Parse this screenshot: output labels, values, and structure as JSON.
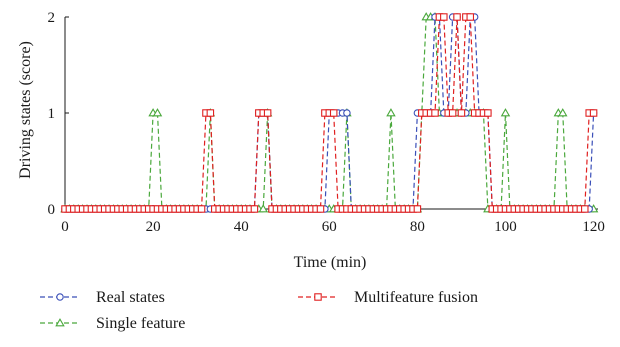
{
  "chart_data": {
    "type": "line",
    "xlabel": "Time (min)",
    "ylabel": "Driving states (score)",
    "xlim": [
      0,
      121
    ],
    "ylim": [
      0,
      2
    ],
    "xticks": [
      0,
      20,
      40,
      60,
      80,
      100,
      120
    ],
    "yticks": [
      0,
      1,
      2
    ],
    "grid": false,
    "legend_position": "bottom",
    "series": [
      {
        "name": "Real states",
        "color": "#3a4fb8",
        "marker": "circle",
        "x": [
          0,
          1,
          2,
          3,
          4,
          5,
          6,
          7,
          8,
          9,
          10,
          11,
          12,
          13,
          14,
          15,
          16,
          17,
          18,
          19,
          20,
          21,
          22,
          23,
          24,
          25,
          26,
          27,
          28,
          29,
          30,
          31,
          32,
          33,
          34,
          35,
          36,
          37,
          38,
          39,
          40,
          41,
          42,
          43,
          44,
          45,
          46,
          47,
          48,
          49,
          50,
          51,
          52,
          53,
          54,
          55,
          56,
          57,
          58,
          59,
          60,
          61,
          62,
          63,
          64,
          65,
          66,
          67,
          68,
          69,
          70,
          71,
          72,
          73,
          74,
          75,
          76,
          77,
          78,
          79,
          80,
          81,
          82,
          83,
          84,
          85,
          86,
          87,
          88,
          89,
          90,
          91,
          92,
          93,
          94,
          95,
          96,
          97,
          98,
          99,
          100,
          101,
          102,
          103,
          104,
          105,
          106,
          107,
          108,
          109,
          110,
          111,
          112,
          113,
          114,
          115,
          116,
          117,
          118,
          119,
          120
        ],
        "values": [
          0,
          0,
          0,
          0,
          0,
          0,
          0,
          0,
          0,
          0,
          0,
          0,
          0,
          0,
          0,
          0,
          0,
          0,
          0,
          0,
          0,
          0,
          0,
          0,
          0,
          0,
          0,
          0,
          0,
          0,
          0,
          0,
          0,
          0,
          0,
          0,
          0,
          0,
          0,
          0,
          0,
          0,
          0,
          0,
          1,
          1,
          1,
          0,
          0,
          0,
          0,
          0,
          0,
          0,
          0,
          0,
          0,
          0,
          0,
          0,
          1,
          1,
          1,
          1,
          1,
          0,
          0,
          0,
          0,
          0,
          0,
          0,
          0,
          0,
          0,
          0,
          0,
          0,
          0,
          0,
          1,
          1,
          1,
          1,
          2,
          2,
          1,
          1,
          2,
          2,
          1,
          1,
          2,
          2,
          1,
          1,
          1,
          0,
          0,
          0,
          0,
          0,
          0,
          0,
          0,
          0,
          0,
          0,
          0,
          0,
          0,
          0,
          0,
          0,
          0,
          0,
          0,
          0,
          0,
          0,
          1
        ]
      },
      {
        "name": "Single feature",
        "color": "#4aa83c",
        "marker": "triangle",
        "x": [
          0,
          1,
          2,
          3,
          4,
          5,
          6,
          7,
          8,
          9,
          10,
          11,
          12,
          13,
          14,
          15,
          16,
          17,
          18,
          19,
          20,
          21,
          22,
          23,
          24,
          25,
          26,
          27,
          28,
          29,
          30,
          31,
          32,
          33,
          34,
          35,
          36,
          37,
          38,
          39,
          40,
          41,
          42,
          43,
          44,
          45,
          46,
          47,
          48,
          49,
          50,
          51,
          52,
          53,
          54,
          55,
          56,
          57,
          58,
          59,
          60,
          61,
          62,
          63,
          64,
          65,
          66,
          67,
          68,
          69,
          70,
          71,
          72,
          73,
          74,
          75,
          76,
          77,
          78,
          79,
          80,
          81,
          82,
          83,
          84,
          85,
          86,
          87,
          88,
          89,
          90,
          91,
          92,
          93,
          94,
          95,
          96,
          97,
          98,
          99,
          100,
          101,
          102,
          103,
          104,
          105,
          106,
          107,
          108,
          109,
          110,
          111,
          112,
          113,
          114,
          115,
          116,
          117,
          118,
          119,
          120
        ],
        "values": [
          0,
          0,
          0,
          0,
          0,
          0,
          0,
          0,
          0,
          0,
          0,
          0,
          0,
          0,
          0,
          0,
          0,
          0,
          0,
          0,
          1,
          1,
          0,
          0,
          0,
          0,
          0,
          0,
          0,
          0,
          0,
          0,
          0,
          1,
          0,
          0,
          0,
          0,
          0,
          0,
          0,
          0,
          0,
          0,
          0,
          0,
          1,
          0,
          0,
          0,
          0,
          0,
          0,
          0,
          0,
          0,
          0,
          0,
          0,
          0,
          0,
          0,
          0,
          0,
          1,
          0,
          0,
          0,
          0,
          0,
          0,
          0,
          0,
          0,
          1,
          0,
          0,
          0,
          0,
          0,
          0,
          1,
          2,
          2,
          2,
          1,
          1,
          1,
          1,
          1,
          1,
          1,
          1,
          1,
          1,
          1,
          0,
          0,
          0,
          0,
          1,
          0,
          0,
          0,
          0,
          0,
          0,
          0,
          0,
          0,
          0,
          0,
          1,
          1,
          0,
          0,
          0,
          0,
          0,
          0,
          0
        ]
      },
      {
        "name": "Multifeature fusion",
        "color": "#e02020",
        "marker": "square",
        "x": [
          0,
          1,
          2,
          3,
          4,
          5,
          6,
          7,
          8,
          9,
          10,
          11,
          12,
          13,
          14,
          15,
          16,
          17,
          18,
          19,
          20,
          21,
          22,
          23,
          24,
          25,
          26,
          27,
          28,
          29,
          30,
          31,
          32,
          33,
          34,
          35,
          36,
          37,
          38,
          39,
          40,
          41,
          42,
          43,
          44,
          45,
          46,
          47,
          48,
          49,
          50,
          51,
          52,
          53,
          54,
          55,
          56,
          57,
          58,
          59,
          60,
          61,
          62,
          63,
          64,
          65,
          66,
          67,
          68,
          69,
          70,
          71,
          72,
          73,
          74,
          75,
          76,
          77,
          78,
          79,
          80,
          81,
          82,
          83,
          84,
          85,
          86,
          87,
          88,
          89,
          90,
          91,
          92,
          93,
          94,
          95,
          96,
          97,
          98,
          99,
          100,
          101,
          102,
          103,
          104,
          105,
          106,
          107,
          108,
          109,
          110,
          111,
          112,
          113,
          114,
          115,
          116,
          117,
          118,
          119,
          120
        ],
        "values": [
          0,
          0,
          0,
          0,
          0,
          0,
          0,
          0,
          0,
          0,
          0,
          0,
          0,
          0,
          0,
          0,
          0,
          0,
          0,
          0,
          0,
          0,
          0,
          0,
          0,
          0,
          0,
          0,
          0,
          0,
          0,
          0,
          1,
          1,
          0,
          0,
          0,
          0,
          0,
          0,
          0,
          0,
          0,
          0,
          1,
          1,
          1,
          0,
          0,
          0,
          0,
          0,
          0,
          0,
          0,
          0,
          0,
          0,
          0,
          1,
          1,
          1,
          0,
          0,
          0,
          0,
          0,
          0,
          0,
          0,
          0,
          0,
          0,
          0,
          0,
          0,
          0,
          0,
          0,
          0,
          0,
          1,
          1,
          1,
          1,
          2,
          2,
          1,
          1,
          2,
          1,
          2,
          2,
          1,
          1,
          1,
          1,
          0,
          0,
          0,
          0,
          0,
          0,
          0,
          0,
          0,
          0,
          0,
          0,
          0,
          0,
          0,
          0,
          0,
          0,
          0,
          0,
          0,
          0,
          1,
          1
        ]
      }
    ]
  }
}
